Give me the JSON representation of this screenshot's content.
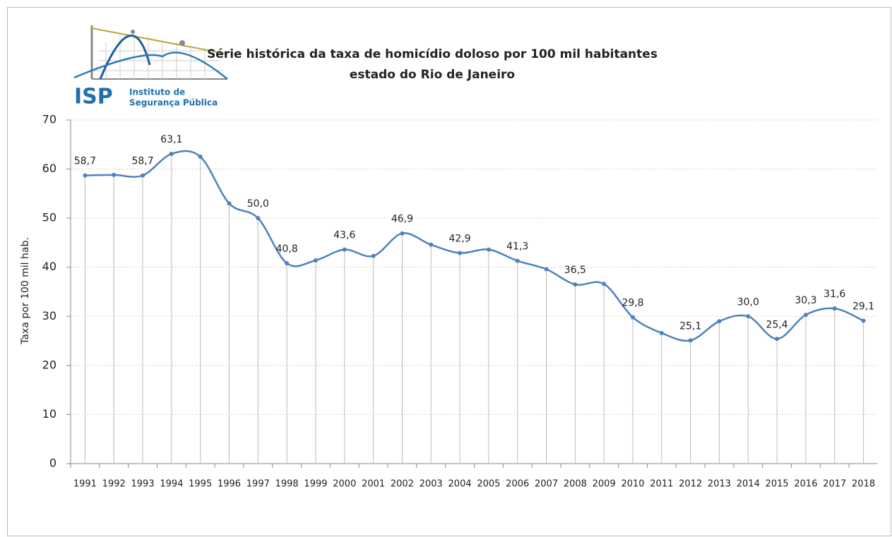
{
  "logo": {
    "abbr": "ISP",
    "line1": "Instituto de",
    "line2": "Segurança Pública"
  },
  "chart_data": {
    "type": "line",
    "title": "Série histórica da taxa de homicídio doloso por 100 mil habitantes",
    "subtitle": "estado do Rio de Janeiro",
    "y_label": "Taxa por 100 mil hab.",
    "categories": [
      "1991",
      "1992",
      "1993",
      "1994",
      "1995",
      "1996",
      "1997",
      "1998",
      "1999",
      "2000",
      "2001",
      "2002",
      "2003",
      "2004",
      "2005",
      "2006",
      "2007",
      "2008",
      "2009",
      "2010",
      "2011",
      "2012",
      "2013",
      "2014",
      "2015",
      "2016",
      "2017",
      "2018"
    ],
    "values": [
      58.7,
      58.8,
      58.7,
      63.1,
      62.5,
      53.0,
      50.0,
      40.8,
      41.4,
      43.6,
      42.3,
      46.9,
      44.6,
      42.9,
      43.6,
      41.3,
      39.6,
      36.5,
      36.6,
      29.8,
      26.6,
      25.1,
      29.0,
      30.0,
      25.4,
      30.3,
      31.6,
      29.1
    ],
    "value_labels": [
      "58,7",
      null,
      "58,7",
      "63,1",
      null,
      null,
      "50,0",
      "40,8",
      null,
      "43,6",
      null,
      "46,9",
      null,
      "42,9",
      null,
      "41,3",
      null,
      "36,5",
      null,
      "29,8",
      null,
      "25,1",
      null,
      "30,0",
      "25,4",
      "30,3",
      "31,6",
      "29,1"
    ],
    "color": "#4f81bd",
    "ylim": [
      0,
      70
    ],
    "yticks": [
      0,
      10,
      20,
      30,
      40,
      50,
      60,
      70
    ],
    "grid": true,
    "smooth": true
  }
}
